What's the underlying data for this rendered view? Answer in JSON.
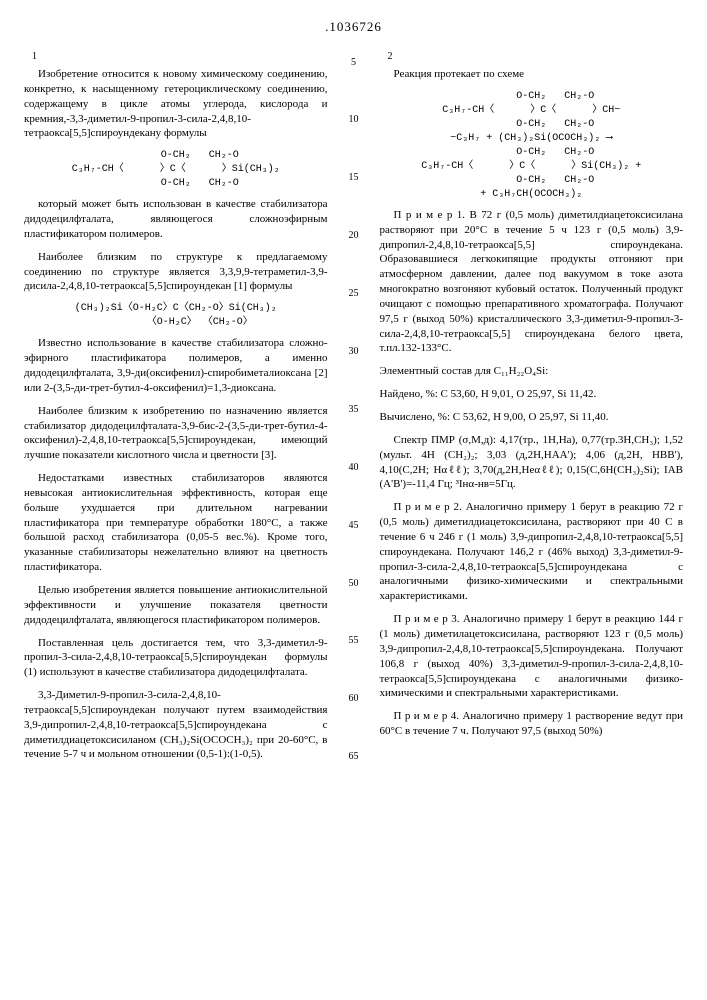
{
  "page": {
    "patent_number": ".1036726",
    "col_left_num": "1",
    "col_right_num": "2"
  },
  "line_numbers": [
    "5",
    "10",
    "15",
    "20",
    "25",
    "30",
    "35",
    "40",
    "45",
    "50",
    "55",
    "60",
    "65"
  ],
  "left": {
    "p1": "Изобретение относится к новому химическому соединению, конкретно, к насыщенному гетероциклическому соединению, содержащему в цикле атомы углерода, кислорода и кремния,-3,3-диметил-9-пропил-3-сила-2,4,8,10-тетраокса[5,5]спироундекану формулы",
    "formula1_l1": "        O-CH₂   CH₂-O",
    "formula1_l2": "C₃H₇-CH〈      〉C〈      〉Si(CH₃)₂",
    "formula1_l3": "        O-CH₂   CH₂-O",
    "p2": "который может быть использован в качестве стабилизатора дидодецилфталата, являющегося сложноэфирным пластификатором полимеров.",
    "p3": "Наиболее близким по структуре к предлагаемому соединению по структуре является 3,3,9,9-тетраметил-3,9-дисила-2,4,8,10-тетраокса[5,5]спироундекан [1] формулы",
    "formula2_l1": "(CH₃)₂Si〈O-H₂C〉C〈CH₂-O〉Si(CH₃)₂",
    "formula2_l2": "        〈O-H₂C〉 〈CH₂-O〉",
    "p4": "Известно использование в качестве стабилизатора сложно-эфирного пластификатора полимеров, а именно дидодецилфталата, 3,9-ди(оксифенил)-спиробиметалиоксана [2] или 2-(3,5-ди-трет-бутил-4-оксифенил)=1,3-диоксана.",
    "p5": "Наиболее близким к изобретению по назначению является стабилизатор дидодецилфталата-3,9-бис-2-(3,5-ди-трет-бутил-4-оксифенил)-2,4,8,10-тетраокса[5,5]спироундекан, имеющий лучшие показатели кислотного числа и цветности [3].",
    "p6": "Недостатками известных стабилизаторов являются невысокая антиокислительная эффективность, которая еще больше ухудшается при длительном нагревании пластификатора при температуре обработки 180°С, а также большой расход стабилизатора (0,05-5 вес.%). Кроме того, указанные стабилизаторы нежелательно влияют на цветность пластификатора.",
    "p7": "Целью изобретения является повышение антиокислительной эффективности и улучшение показателя цветности дидодецилфталата, являющегося пластификатором полимеров.",
    "p8": "Поставленная цель достигается тем, что 3,3-диметил-9-пропил-3-сила-2,4,8,10-тетраокса[5,5]спироундекан формулы (1) используют в качестве стабилизатора дидодецилфталата.",
    "p9": "3,3-Диметил-9-пропил-3-сила-2,4,8,10-тетраокса[5,5]спироундекан получают путем взаимодействия 3,9-дипропил-2,4,8,10-тетраокса[5,5]спироундекана с диметилдиацетоксисиланом (CH₃)₂Si(OCOCH₃)₂ при 20-60°С, в течение 5-7 ч и мольном отношении (0,5-1):(1-0,5)."
  },
  "right": {
    "p1": "Реакция протекает по схеме",
    "formula3_l1": "        O-CH₂   CH₂-O",
    "formula3_l2": "C₃H₇-CH〈      〉C〈      〉CH−",
    "formula3_l3": "        O-CH₂   CH₂-O",
    "formula3_l4": "−C₃H₇ + (CH₃)₂Si(OCOCH₃)₂ ⟶",
    "formula3_l5": "        O-CH₂   CH₂-O",
    "formula3_l6": "C₃H₇-CH〈      〉C〈      〉Si(CH₃)₂ +",
    "formula3_l7": "        O-CH₂   CH₂-O",
    "formula3_l8": "+ C₃H₇CH(OCOCH₃)₂",
    "p2": "П р и м е р  1. В 72 г (0,5 моль) диметилдиацетоксисилана растворяют при 20°С в течение 5 ч 123 г (0,5 моль) 3,9-дипропил-2,4,8,10-тетраокса[5,5] спироундекана. Образовавшиеся легкокипящие продукты отгоняют при атмосферном давлении, далее под вакуумом в токе азота многократно возгоняют кубовый остаток. Полученный продукт очищают с помощью препаративного хроматографа. Получают 97,5 г (выход 50%) кристаллического 3,3-диметил-9-пропил-3-сила-2,4,8,10-тетраокса[5,5] спироундекана белого цвета, т.пл.132-133°С.",
    "p3": "Элементный состав для C₁₁H₂₂O₄Si:",
    "p4": "Найдено, %: С 53,60, Н 9,01, О 25,97, Si 11,42.",
    "p5": "Вычислено, %: С 53,62, Н 9,00, О 25,97, Si 11,40.",
    "p6": "Спектр ПМР (σ,М,д): 4,17(тр., 1Н,На), 0,77(тр.3Н,СН₃); 1,52 (мульт. 4Н (СН₂)₂; 3,03 (д,2Н,НAA'); 4,06 (д,2Н, НBB'), 4,10(С,2Н; Нαℓℓ); 3,70(д,2Н,Неαℓℓ); 0,15(С,6Н(СН₃)₂Si); IAB (A'B')=-11,4 Гц; ³Iнα-нв=5Гц.",
    "p7": "П р и м е р  2. Аналогично примеру 1 берут в реакцию 72 г (0,5 моль) диметилдиацетоксисилана, растворяют при 40 С в течение 6 ч 246 г (1 моль) 3,9-дипропил-2,4,8,10-тетраокса[5,5] спироундекана. Получают 146,2 г (46% выход) 3,3-диметил-9-пропил-3-сила-2,4,8,10-тетраокса[5,5]спироундекана с аналогичными физико-химическими и спектральными характеристиками.",
    "p8": "П р и м е р  3. Аналогично примеру 1 берут в реакцию 144 г (1 моль) диметилацетоксисилана, растворяют 123 г (0,5 моль) 3,9-дипропил-2,4,8,10-тетраокса[5,5]спироундекана. Получают 106,8 г (выход 40%) 3,3-диметил-9-пропил-3-сила-2,4,8,10-тетраокса[5,5]спироундекана с аналогичными физико-химическими и спектральными характеристиками.",
    "p9": "П р и м е р  4. Аналогично примеру 1 растворение ведут при 60°С в течение 7 ч. Получают 97,5 (выход 50%)"
  }
}
